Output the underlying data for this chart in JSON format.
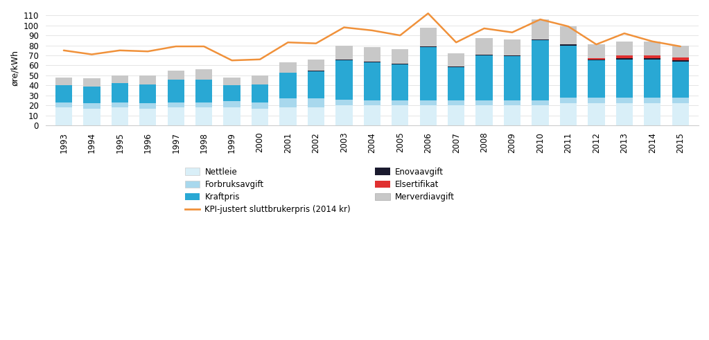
{
  "years": [
    1993,
    1994,
    1995,
    1996,
    1997,
    1998,
    1999,
    2000,
    2001,
    2002,
    2003,
    2004,
    2005,
    2006,
    2007,
    2008,
    2009,
    2010,
    2011,
    2012,
    2013,
    2014,
    2015
  ],
  "nettleie": [
    18,
    17,
    18,
    17,
    18,
    18,
    18,
    17,
    18,
    18,
    20,
    20,
    20,
    20,
    20,
    20,
    20,
    20,
    22,
    22,
    22,
    22,
    22
  ],
  "forbruksavgift": [
    5,
    5,
    5,
    5,
    5,
    5,
    6,
    6,
    9,
    9,
    6,
    5,
    5,
    5,
    5,
    5,
    5,
    5,
    6,
    6,
    6,
    6,
    6
  ],
  "kraftpris": [
    17,
    17,
    19,
    19,
    23,
    23,
    16,
    18,
    26,
    27,
    39,
    38,
    36,
    53,
    33,
    45,
    44,
    60,
    52,
    37,
    38,
    38,
    36
  ],
  "enovaavgift": [
    0,
    0,
    0,
    0,
    0,
    0,
    0,
    0,
    0,
    1,
    1,
    1,
    1,
    1,
    1,
    1,
    1,
    1,
    1,
    1,
    1,
    1,
    1
  ],
  "elsertifikat": [
    0,
    0,
    0,
    0,
    0,
    0,
    0,
    0,
    0,
    0,
    0,
    0,
    0,
    0,
    0,
    0,
    0,
    0,
    0,
    1,
    3,
    3,
    3
  ],
  "merverdiavgift": [
    8,
    8,
    8,
    9,
    9,
    10,
    8,
    9,
    10,
    11,
    14,
    14,
    14,
    19,
    13,
    16,
    16,
    20,
    18,
    14,
    14,
    14,
    12
  ],
  "kpi_line": [
    75,
    71,
    75,
    74,
    79,
    79,
    65,
    66,
    83,
    82,
    98,
    95,
    90,
    112,
    83,
    97,
    93,
    106,
    99,
    81,
    92,
    84,
    79
  ],
  "colors": {
    "nettleie": "#d9eff8",
    "forbruksavgift": "#a8d8ed",
    "kraftpris": "#29a8d4",
    "enovaavgift": "#1a1a2e",
    "elsertifikat": "#e03030",
    "merverdiavgift": "#c8c8c8",
    "kpi_line": "#f0913a"
  },
  "ylabel": "øre/kWh",
  "ylim": [
    0,
    115
  ],
  "yticks": [
    0,
    10,
    20,
    30,
    40,
    50,
    60,
    70,
    80,
    90,
    100,
    110
  ],
  "legend_labels": {
    "nettleie": "Nettleie",
    "forbruksavgift": "Forbruksavgift",
    "kraftpris": "Kraftpris",
    "enovaavgift": "Enovaavgift",
    "elsertifikat": "Elsertifikat",
    "merverdiavgift": "Merverdiavgift",
    "kpi_line": "KPI-justert sluttbrukerpris (2014 kr)"
  },
  "bg_color": "#ffffff"
}
